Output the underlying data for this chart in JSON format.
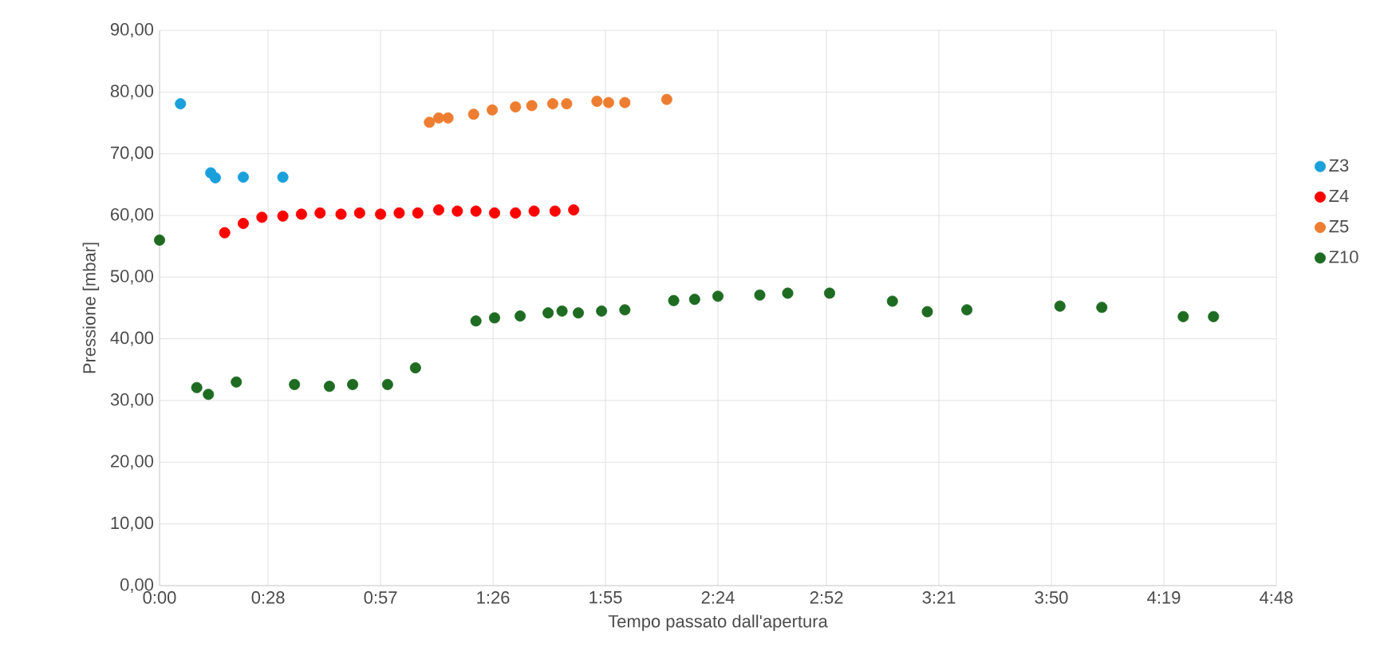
{
  "chart_data": {
    "type": "scatter",
    "xlabel": "Tempo passato dall'apertura",
    "ylabel": "Pressione [mbar]",
    "xlim": [
      0,
      4.8
    ],
    "ylim": [
      0,
      90
    ],
    "xticks": [
      {
        "value": 0,
        "label": "0:00"
      },
      {
        "value": 0.4667,
        "label": "0:28"
      },
      {
        "value": 0.95,
        "label": "0:57"
      },
      {
        "value": 1.4333,
        "label": "1:26"
      },
      {
        "value": 1.9167,
        "label": "1:55"
      },
      {
        "value": 2.4,
        "label": "2:24"
      },
      {
        "value": 2.8667,
        "label": "2:52"
      },
      {
        "value": 3.35,
        "label": "3:21"
      },
      {
        "value": 3.8333,
        "label": "3:50"
      },
      {
        "value": 4.3167,
        "label": "4:19"
      },
      {
        "value": 4.8,
        "label": "4:48"
      }
    ],
    "yticks": [
      {
        "value": 0,
        "label": "0,00"
      },
      {
        "value": 10,
        "label": "10,00"
      },
      {
        "value": 20,
        "label": "20,00"
      },
      {
        "value": 30,
        "label": "30,00"
      },
      {
        "value": 40,
        "label": "40,00"
      },
      {
        "value": 50,
        "label": "50,00"
      },
      {
        "value": 60,
        "label": "60,00"
      },
      {
        "value": 70,
        "label": "70,00"
      },
      {
        "value": 80,
        "label": "80,00"
      },
      {
        "value": 90,
        "label": "90,00"
      }
    ],
    "grid": true,
    "legend": "right",
    "series": [
      {
        "name": "Z3",
        "color": "#1aa0db",
        "x": [
          0.09,
          0.22,
          0.24,
          0.36,
          0.53
        ],
        "values": [
          78.1,
          66.9,
          66.1,
          66.2,
          66.2
        ]
      },
      {
        "name": "Z4",
        "color": "#ff0000",
        "x": [
          0.28,
          0.36,
          0.44,
          0.53,
          0.61,
          0.69,
          0.78,
          0.86,
          0.95,
          1.03,
          1.11,
          1.2,
          1.28,
          1.36,
          1.44,
          1.53,
          1.61,
          1.7,
          1.78
        ],
        "values": [
          57.2,
          58.7,
          59.7,
          59.9,
          60.2,
          60.4,
          60.2,
          60.4,
          60.2,
          60.4,
          60.4,
          60.9,
          60.7,
          60.7,
          60.4,
          60.4,
          60.7,
          60.7,
          60.9
        ]
      },
      {
        "name": "Z5",
        "color": "#ed7d31",
        "x": [
          1.16,
          1.2,
          1.24,
          1.35,
          1.43,
          1.53,
          1.6,
          1.69,
          1.75,
          1.88,
          1.93,
          2.0,
          2.18
        ],
        "values": [
          75.1,
          75.8,
          75.8,
          76.4,
          77.1,
          77.6,
          77.8,
          78.1,
          78.1,
          78.5,
          78.3,
          78.3,
          78.8
        ]
      },
      {
        "name": "Z10",
        "color": "#1e6b22",
        "x": [
          0,
          0.16,
          0.21,
          0.33,
          0.58,
          0.73,
          0.83,
          0.98,
          1.1,
          1.36,
          1.44,
          1.55,
          1.67,
          1.73,
          1.8,
          1.9,
          2.0,
          2.21,
          2.3,
          2.4,
          2.58,
          2.7,
          2.88,
          3.15,
          3.3,
          3.47,
          3.87,
          4.05,
          4.4,
          4.53
        ],
        "values": [
          56.0,
          32.1,
          31.0,
          33.0,
          32.6,
          32.3,
          32.6,
          32.6,
          35.3,
          42.9,
          43.4,
          43.7,
          44.2,
          44.5,
          44.2,
          44.5,
          44.7,
          46.2,
          46.4,
          46.9,
          47.1,
          47.4,
          47.4,
          46.1,
          44.4,
          44.7,
          45.3,
          45.1,
          43.6,
          43.6
        ]
      }
    ]
  }
}
